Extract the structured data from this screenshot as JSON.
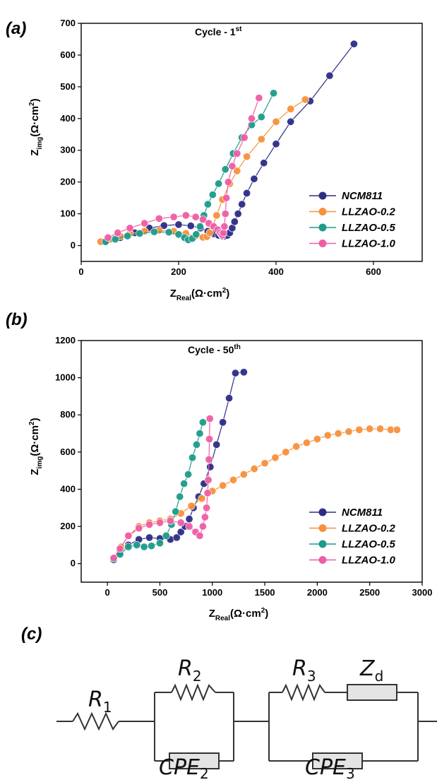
{
  "panels": [
    {
      "label": "(a)"
    },
    {
      "label": "(b)"
    },
    {
      "label": "(c)"
    }
  ],
  "chart_data": [
    {
      "type": "scatter",
      "title": "Cycle - 1",
      "title_sup": "st",
      "xlabel": "Z",
      "xlabel_sub": "Real",
      "xlabel_unit": "(Ω·cm",
      "ylabel": "Z",
      "ylabel_sub": "img",
      "ylabel_unit": "(Ω·cm",
      "unit_sup": "2",
      "unit_close": ")",
      "xlim": [
        0,
        700
      ],
      "ylim": [
        -50,
        700
      ],
      "xticks": [
        0,
        200,
        400,
        600
      ],
      "yticks": [
        0,
        100,
        200,
        300,
        400,
        500,
        600,
        700
      ],
      "legend_position": "bottom-right",
      "series": [
        {
          "name": "NCM811",
          "color": "#2e2d86",
          "x": [
            50,
            80,
            110,
            140,
            170,
            200,
            225,
            245,
            260,
            272,
            282,
            290,
            296,
            300,
            305,
            310,
            315,
            322,
            330,
            340,
            355,
            375,
            400,
            430,
            470,
            510,
            560
          ],
          "y": [
            12,
            25,
            40,
            55,
            63,
            66,
            62,
            55,
            45,
            37,
            32,
            30,
            30,
            32,
            40,
            55,
            75,
            100,
            130,
            165,
            210,
            260,
            320,
            390,
            455,
            535,
            635
          ]
        },
        {
          "name": "LLZAO-0.2",
          "color": "#f7913d",
          "x": [
            40,
            60,
            80,
            100,
            130,
            160,
            190,
            215,
            235,
            250,
            258,
            264,
            270,
            278,
            290,
            305,
            320,
            340,
            370,
            400,
            430,
            460
          ],
          "y": [
            12,
            20,
            30,
            38,
            45,
            48,
            45,
            38,
            30,
            26,
            28,
            40,
            60,
            95,
            145,
            195,
            235,
            280,
            335,
            390,
            430,
            460
          ]
        },
        {
          "name": "LLZAO-0.5",
          "color": "#1e9b8a",
          "x": [
            50,
            70,
            95,
            120,
            150,
            180,
            200,
            212,
            220,
            228,
            236,
            244,
            252,
            260,
            270,
            282,
            296,
            312,
            330,
            350,
            370,
            395
          ],
          "y": [
            12,
            20,
            30,
            38,
            43,
            42,
            35,
            25,
            18,
            22,
            35,
            60,
            95,
            130,
            160,
            195,
            240,
            290,
            340,
            380,
            405,
            480
          ]
        },
        {
          "name": "LLZAO-1.0",
          "color": "#ee5ea5",
          "x": [
            55,
            75,
            100,
            130,
            160,
            190,
            215,
            235,
            250,
            262,
            272,
            280,
            285,
            288,
            290,
            292,
            294,
            296,
            298,
            302,
            310,
            320,
            335,
            350,
            365
          ],
          "y": [
            25,
            40,
            55,
            70,
            85,
            90,
            95,
            90,
            82,
            70,
            60,
            50,
            40,
            35,
            33,
            40,
            60,
            100,
            150,
            200,
            250,
            290,
            340,
            400,
            465
          ]
        }
      ]
    },
    {
      "type": "scatter",
      "title": "Cycle - 50",
      "title_sup": "th",
      "xlabel": "Z",
      "xlabel_sub": "Real",
      "xlabel_unit": "(Ω·cm",
      "ylabel": "Z",
      "ylabel_sub": "img",
      "ylabel_unit": "(Ω·cm",
      "unit_sup": "2",
      "unit_close": ")",
      "xlim": [
        -250,
        3000
      ],
      "ylim": [
        -100,
        1200
      ],
      "xticks": [
        0,
        500,
        1000,
        1500,
        2000,
        2500,
        3000
      ],
      "yticks": [
        0,
        200,
        400,
        600,
        800,
        1000,
        1200
      ],
      "legend_position": "bottom-right",
      "series": [
        {
          "name": "NCM811",
          "color": "#2e2d86",
          "x": [
            60,
            120,
            200,
            300,
            400,
            500,
            600,
            660,
            700,
            740,
            780,
            820,
            870,
            920,
            980,
            1040,
            1100,
            1160,
            1220,
            1300
          ],
          "y": [
            20,
            60,
            100,
            130,
            140,
            135,
            130,
            140,
            170,
            200,
            240,
            300,
            360,
            430,
            520,
            640,
            760,
            890,
            1025,
            1030
          ]
        },
        {
          "name": "LLZAO-0.2",
          "color": "#f7913d",
          "x": [
            60,
            130,
            200,
            300,
            400,
            500,
            600,
            700,
            800,
            900,
            1000,
            1100,
            1200,
            1300,
            1400,
            1500,
            1600,
            1700,
            1800,
            1900,
            2000,
            2100,
            2200,
            2300,
            2400,
            2500,
            2600,
            2700,
            2760
          ],
          "y": [
            25,
            90,
            150,
            200,
            220,
            230,
            240,
            270,
            310,
            350,
            390,
            420,
            450,
            480,
            510,
            540,
            570,
            600,
            630,
            650,
            670,
            690,
            700,
            710,
            720,
            725,
            725,
            720,
            720
          ]
        },
        {
          "name": "LLZAO-0.5",
          "color": "#1e9b8a",
          "x": [
            60,
            120,
            200,
            280,
            350,
            420,
            500,
            560,
            610,
            650,
            690,
            730,
            770,
            810,
            850,
            880,
            910
          ],
          "y": [
            20,
            50,
            90,
            100,
            90,
            95,
            110,
            150,
            210,
            280,
            360,
            430,
            480,
            570,
            640,
            700,
            760
          ]
        },
        {
          "name": "LLZAO-1.0",
          "color": "#ee5ea5",
          "x": [
            60,
            120,
            200,
            300,
            400,
            500,
            600,
            700,
            780,
            840,
            880,
            910,
            930,
            945,
            955,
            962,
            968,
            972,
            976
          ],
          "y": [
            30,
            80,
            150,
            190,
            210,
            220,
            230,
            220,
            200,
            170,
            150,
            200,
            250,
            300,
            380,
            450,
            560,
            670,
            780
          ]
        }
      ]
    }
  ],
  "circuit": {
    "R1": {
      "letter": "R",
      "sub": "1"
    },
    "R2": {
      "letter": "R",
      "sub": "2"
    },
    "R3": {
      "letter": "R",
      "sub": "3"
    },
    "Zd": {
      "letter": "Z",
      "sub": "d"
    },
    "CPE2": {
      "letter": "CPE",
      "sub": "2"
    },
    "CPE3": {
      "letter": "CPE",
      "sub": "3"
    }
  }
}
